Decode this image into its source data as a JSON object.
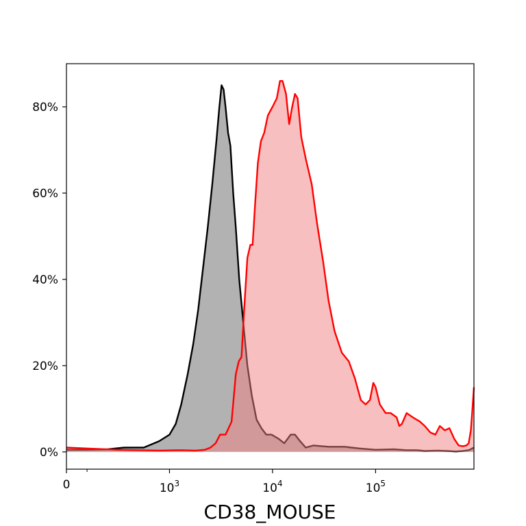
{
  "chart_data": {
    "type": "area",
    "xlabel": "CD38_MOUSE",
    "ylabel": "",
    "title": "",
    "x_scale": "symlog",
    "xlim": [
      0,
      900000
    ],
    "ylim": [
      -0.04,
      0.9
    ],
    "x_ticks": [
      {
        "value": 0,
        "label": "0"
      },
      {
        "value": 1000,
        "label": "10",
        "sup": "3"
      },
      {
        "value": 10000,
        "label": "10",
        "sup": "4"
      },
      {
        "value": 100000,
        "label": "10",
        "sup": "5"
      }
    ],
    "x_minor_ticks": [
      200
    ],
    "y_ticks": [
      {
        "value": 0,
        "label": "0%"
      },
      {
        "value": 0.2,
        "label": "20%"
      },
      {
        "value": 0.4,
        "label": "40%"
      },
      {
        "value": 0.6,
        "label": "60%"
      },
      {
        "value": 0.8,
        "label": "80%"
      }
    ],
    "grid": false,
    "series": [
      {
        "line_color": "#000000",
        "fill_color": "#7f7f7f",
        "fill_opacity": 0.6,
        "points": [
          [
            0,
            0.005
          ],
          [
            200,
            0.005
          ],
          [
            400,
            0.006
          ],
          [
            560,
            0.01
          ],
          [
            750,
            0.01
          ],
          [
            900,
            0.025
          ],
          [
            1000,
            0.04
          ],
          [
            1150,
            0.065
          ],
          [
            1300,
            0.11
          ],
          [
            1500,
            0.18
          ],
          [
            1700,
            0.25
          ],
          [
            1900,
            0.33
          ],
          [
            2100,
            0.42
          ],
          [
            2350,
            0.52
          ],
          [
            2600,
            0.62
          ],
          [
            2850,
            0.72
          ],
          [
            3050,
            0.8
          ],
          [
            3200,
            0.85
          ],
          [
            3350,
            0.84
          ],
          [
            3500,
            0.8
          ],
          [
            3700,
            0.74
          ],
          [
            3900,
            0.71
          ],
          [
            4150,
            0.6
          ],
          [
            4400,
            0.52
          ],
          [
            4750,
            0.4
          ],
          [
            5200,
            0.3
          ],
          [
            5700,
            0.2
          ],
          [
            6300,
            0.13
          ],
          [
            7000,
            0.075
          ],
          [
            7800,
            0.055
          ],
          [
            8700,
            0.04
          ],
          [
            9800,
            0.04
          ],
          [
            11500,
            0.03
          ],
          [
            13000,
            0.02
          ],
          [
            15000,
            0.04
          ],
          [
            16500,
            0.04
          ],
          [
            18500,
            0.025
          ],
          [
            21000,
            0.01
          ],
          [
            25000,
            0.015
          ],
          [
            35000,
            0.012
          ],
          [
            50000,
            0.012
          ],
          [
            70000,
            0.008
          ],
          [
            100000,
            0.005
          ],
          [
            150000,
            0.006
          ],
          [
            200000,
            0.004
          ],
          [
            250000,
            0.004
          ],
          [
            300000,
            0.002
          ],
          [
            400000,
            0.003
          ],
          [
            500000,
            0.002
          ],
          [
            600000,
            0.001
          ],
          [
            700000,
            0.002
          ],
          [
            800000,
            0.004
          ],
          [
            900000,
            0.01
          ]
        ]
      },
      {
        "line_color": "#ff0000",
        "fill_color": "#f08080",
        "fill_opacity": 0.5,
        "points": [
          [
            0,
            0.01
          ],
          [
            200,
            0.008
          ],
          [
            500,
            0.005
          ],
          [
            900,
            0.003
          ],
          [
            1300,
            0.004
          ],
          [
            1800,
            0.003
          ],
          [
            2200,
            0.005
          ],
          [
            2500,
            0.01
          ],
          [
            2800,
            0.02
          ],
          [
            3100,
            0.04
          ],
          [
            3500,
            0.04
          ],
          [
            4000,
            0.07
          ],
          [
            4400,
            0.18
          ],
          [
            4700,
            0.21
          ],
          [
            5000,
            0.22
          ],
          [
            5300,
            0.33
          ],
          [
            5700,
            0.45
          ],
          [
            6100,
            0.48
          ],
          [
            6400,
            0.48
          ],
          [
            6800,
            0.58
          ],
          [
            7200,
            0.67
          ],
          [
            7700,
            0.72
          ],
          [
            8300,
            0.74
          ],
          [
            9000,
            0.78
          ],
          [
            10000,
            0.8
          ],
          [
            11000,
            0.82
          ],
          [
            11800,
            0.86
          ],
          [
            12500,
            0.86
          ],
          [
            13500,
            0.83
          ],
          [
            14500,
            0.76
          ],
          [
            15500,
            0.8
          ],
          [
            16500,
            0.83
          ],
          [
            17500,
            0.82
          ],
          [
            19000,
            0.73
          ],
          [
            21000,
            0.68
          ],
          [
            24000,
            0.62
          ],
          [
            27000,
            0.53
          ],
          [
            31000,
            0.44
          ],
          [
            35000,
            0.35
          ],
          [
            40000,
            0.28
          ],
          [
            47000,
            0.23
          ],
          [
            55000,
            0.21
          ],
          [
            63000,
            0.17
          ],
          [
            72000,
            0.12
          ],
          [
            80000,
            0.11
          ],
          [
            88000,
            0.12
          ],
          [
            95000,
            0.16
          ],
          [
            100000,
            0.15
          ],
          [
            110000,
            0.11
          ],
          [
            125000,
            0.09
          ],
          [
            140000,
            0.09
          ],
          [
            160000,
            0.08
          ],
          [
            170000,
            0.06
          ],
          [
            180000,
            0.065
          ],
          [
            200000,
            0.09
          ],
          [
            230000,
            0.08
          ],
          [
            270000,
            0.07
          ],
          [
            300000,
            0.06
          ],
          [
            340000,
            0.045
          ],
          [
            380000,
            0.04
          ],
          [
            420000,
            0.06
          ],
          [
            470000,
            0.05
          ],
          [
            520000,
            0.055
          ],
          [
            580000,
            0.03
          ],
          [
            640000,
            0.015
          ],
          [
            700000,
            0.013
          ],
          [
            760000,
            0.015
          ],
          [
            800000,
            0.02
          ],
          [
            840000,
            0.05
          ],
          [
            870000,
            0.1
          ],
          [
            900000,
            0.15
          ]
        ]
      }
    ]
  }
}
